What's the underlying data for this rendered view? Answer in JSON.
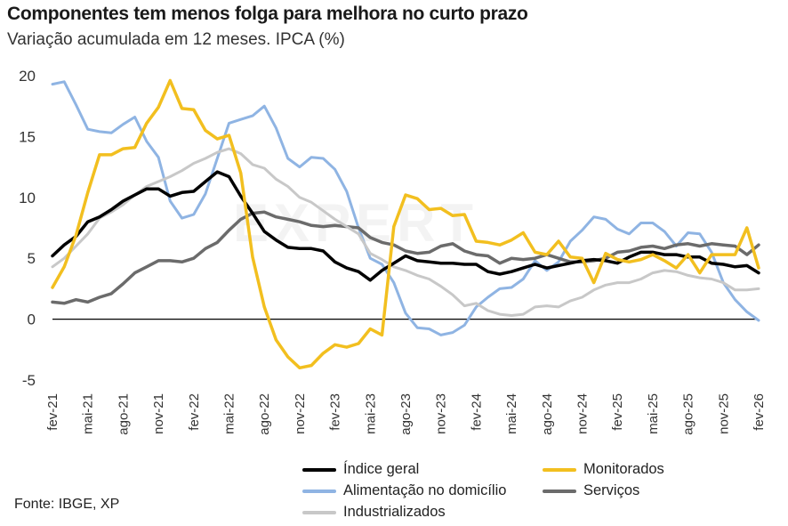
{
  "title": "Componentes tem menos folga para melhora no curto prazo",
  "subtitle": "Variação acumulada em 12 meses. IPCA (%)",
  "source": "Fonte: IBGE, XP",
  "watermark": "EXPERT",
  "chart_data": {
    "type": "line",
    "title": "Componentes tem menos folga para melhora no curto prazo",
    "subtitle": "Variação acumulada em 12 meses. IPCA (%)",
    "ylim": [
      -5,
      20
    ],
    "yticks": [
      -5,
      0,
      5,
      10,
      15,
      20
    ],
    "x_start": "fev-21",
    "n_points": 61,
    "x_tick_labels": [
      "fev-21",
      "mai-21",
      "ago-21",
      "nov-21",
      "fev-22",
      "mai-22",
      "ago-22",
      "nov-22",
      "fev-23",
      "mai-23",
      "ago-23",
      "nov-23",
      "fev-24",
      "mai-24",
      "ago-24",
      "nov-24",
      "fev-25",
      "mai-25",
      "ago-25",
      "nov-25",
      "fev-26"
    ],
    "x_tick_step": 3,
    "legend_position": "bottom",
    "series": [
      {
        "name": "Alimentação no domicílio",
        "color": "#8fb4e3",
        "width": 3,
        "values": [
          19.3,
          19.5,
          17.6,
          15.6,
          15.4,
          15.3,
          16.0,
          16.6,
          14.6,
          13.3,
          9.7,
          8.3,
          8.6,
          10.3,
          13.2,
          16.1,
          16.4,
          16.7,
          17.5,
          15.7,
          13.2,
          12.5,
          13.3,
          13.2,
          12.3,
          10.5,
          7.5,
          5.0,
          4.5,
          3.0,
          0.5,
          -0.7,
          -0.8,
          -1.3,
          -1.1,
          -0.5,
          1.0,
          1.8,
          2.5,
          2.6,
          3.3,
          4.8,
          4.0,
          4.7,
          6.4,
          7.3,
          8.4,
          8.2,
          7.4,
          7.0,
          7.9,
          7.9,
          7.2,
          6.0,
          7.1,
          7.0,
          5.5,
          3.0,
          1.6,
          0.6,
          -0.1
        ]
      },
      {
        "name": "Serviços",
        "color": "#6b6b6b",
        "width": 3.5,
        "values": [
          1.4,
          1.3,
          1.6,
          1.4,
          1.8,
          2.1,
          2.9,
          3.8,
          4.3,
          4.8,
          4.8,
          4.7,
          5.0,
          5.8,
          6.3,
          7.3,
          8.2,
          8.7,
          8.8,
          8.4,
          8.2,
          8.0,
          7.7,
          7.6,
          7.7,
          7.6,
          7.5,
          6.7,
          6.3,
          6.1,
          5.6,
          5.4,
          5.5,
          6.0,
          6.2,
          5.6,
          5.3,
          5.2,
          4.6,
          5.0,
          4.9,
          5.0,
          5.3,
          5.0,
          4.7,
          4.7,
          4.8,
          5.0,
          5.5,
          5.6,
          5.9,
          6.0,
          5.8,
          6.1,
          6.2,
          6.0,
          6.2,
          6.1,
          6.0,
          5.3,
          6.1
        ]
      },
      {
        "name": "Industrializados",
        "color": "#c8c8c8",
        "width": 3,
        "values": [
          4.3,
          5.0,
          6.0,
          7.0,
          8.3,
          8.8,
          9.4,
          10.2,
          10.9,
          11.3,
          11.7,
          12.2,
          12.8,
          13.2,
          13.7,
          14.0,
          13.6,
          12.7,
          12.4,
          11.5,
          10.9,
          10.0,
          9.6,
          8.9,
          8.2,
          7.6,
          7.0,
          5.4,
          4.9,
          4.3,
          4.0,
          3.6,
          3.3,
          2.7,
          2.0,
          1.1,
          1.3,
          0.7,
          0.4,
          0.3,
          0.4,
          1.0,
          1.1,
          1.0,
          1.5,
          1.8,
          2.4,
          2.8,
          3.0,
          3.0,
          3.3,
          3.8,
          4.0,
          3.9,
          3.6,
          3.4,
          3.3,
          3.0,
          2.4,
          2.4,
          2.5
        ]
      },
      {
        "name": "Índice geral",
        "color": "#000000",
        "width": 3.5,
        "values": [
          5.2,
          6.1,
          6.8,
          8.0,
          8.4,
          9.0,
          9.7,
          10.2,
          10.7,
          10.7,
          10.1,
          10.4,
          10.5,
          11.3,
          12.1,
          11.7,
          10.1,
          8.7,
          7.2,
          6.5,
          5.9,
          5.8,
          5.8,
          5.6,
          4.7,
          4.2,
          3.9,
          3.2,
          4.0,
          4.6,
          5.2,
          4.8,
          4.7,
          4.6,
          4.6,
          4.5,
          4.5,
          3.9,
          3.7,
          3.9,
          4.2,
          4.5,
          4.2,
          4.4,
          4.6,
          4.8,
          4.9,
          4.8,
          4.6,
          5.1,
          5.5,
          5.5,
          5.3,
          5.3,
          5.1,
          5.1,
          4.6,
          4.5,
          4.3,
          4.4,
          3.8
        ]
      },
      {
        "name": "Monitorados",
        "color": "#f2bf1f",
        "width": 3.5,
        "values": [
          2.6,
          4.3,
          6.9,
          10.4,
          13.5,
          13.5,
          14.0,
          14.1,
          16.1,
          17.4,
          19.6,
          17.3,
          17.2,
          15.5,
          14.8,
          15.1,
          12.0,
          5.1,
          1.0,
          -1.7,
          -3.1,
          -4.0,
          -3.8,
          -2.8,
          -2.1,
          -2.3,
          -2.0,
          -0.8,
          -1.3,
          7.6,
          10.2,
          9.9,
          9.0,
          9.1,
          8.5,
          8.6,
          6.4,
          6.3,
          6.1,
          6.5,
          7.1,
          5.5,
          5.3,
          6.4,
          5.1,
          5.0,
          3.0,
          5.4,
          4.9,
          4.7,
          4.9,
          5.3,
          4.8,
          4.2,
          5.3,
          3.8,
          5.3,
          5.3,
          5.3,
          7.5,
          4.2
        ]
      }
    ]
  },
  "legend": {
    "items": [
      {
        "name": "Índice geral",
        "color": "#000000"
      },
      {
        "name": "Monitorados",
        "color": "#f2bf1f"
      },
      {
        "name": "Alimentação no domicílio",
        "color": "#8fb4e3"
      },
      {
        "name": "Serviços",
        "color": "#6b6b6b"
      },
      {
        "name": "Industrializados",
        "color": "#c8c8c8"
      }
    ]
  }
}
